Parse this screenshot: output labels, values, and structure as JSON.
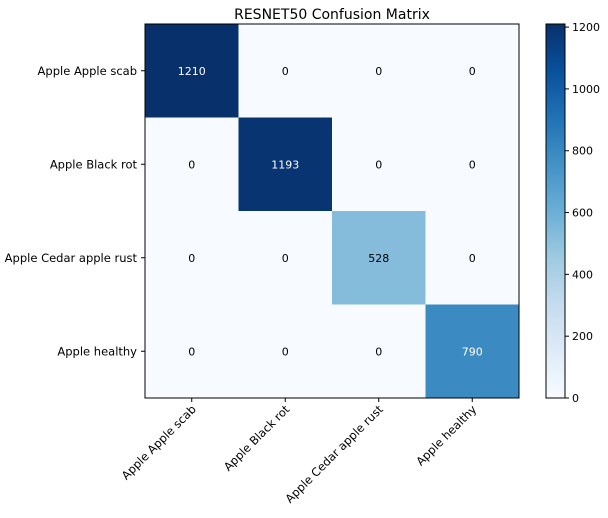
{
  "chart_data": {
    "type": "heatmap",
    "title": "RESNET50 Confusion Matrix",
    "xlabel": "",
    "ylabel": "",
    "row_labels": [
      "Apple Apple scab",
      "Apple Black rot",
      "Apple Cedar apple rust",
      "Apple healthy"
    ],
    "col_labels": [
      "Apple Apple scab",
      "Apple Black rot",
      "Apple Cedar apple rust",
      "Apple healthy"
    ],
    "values": [
      [
        1210,
        0,
        0,
        0
      ],
      [
        0,
        1193,
        0,
        0
      ],
      [
        0,
        0,
        528,
        0
      ],
      [
        0,
        0,
        0,
        790
      ]
    ],
    "colormap": "Blues",
    "colormap_stops": [
      "#f7fbff",
      "#deebf7",
      "#c6dbef",
      "#9ecae1",
      "#6baed6",
      "#4292c6",
      "#2171b5",
      "#08519c",
      "#08306b"
    ],
    "colorbar": {
      "range": [
        0,
        1210
      ],
      "ticks": [
        0,
        200,
        400,
        600,
        800,
        1000,
        1200
      ]
    },
    "grid": false,
    "x_tick_rotation_deg": 45
  }
}
